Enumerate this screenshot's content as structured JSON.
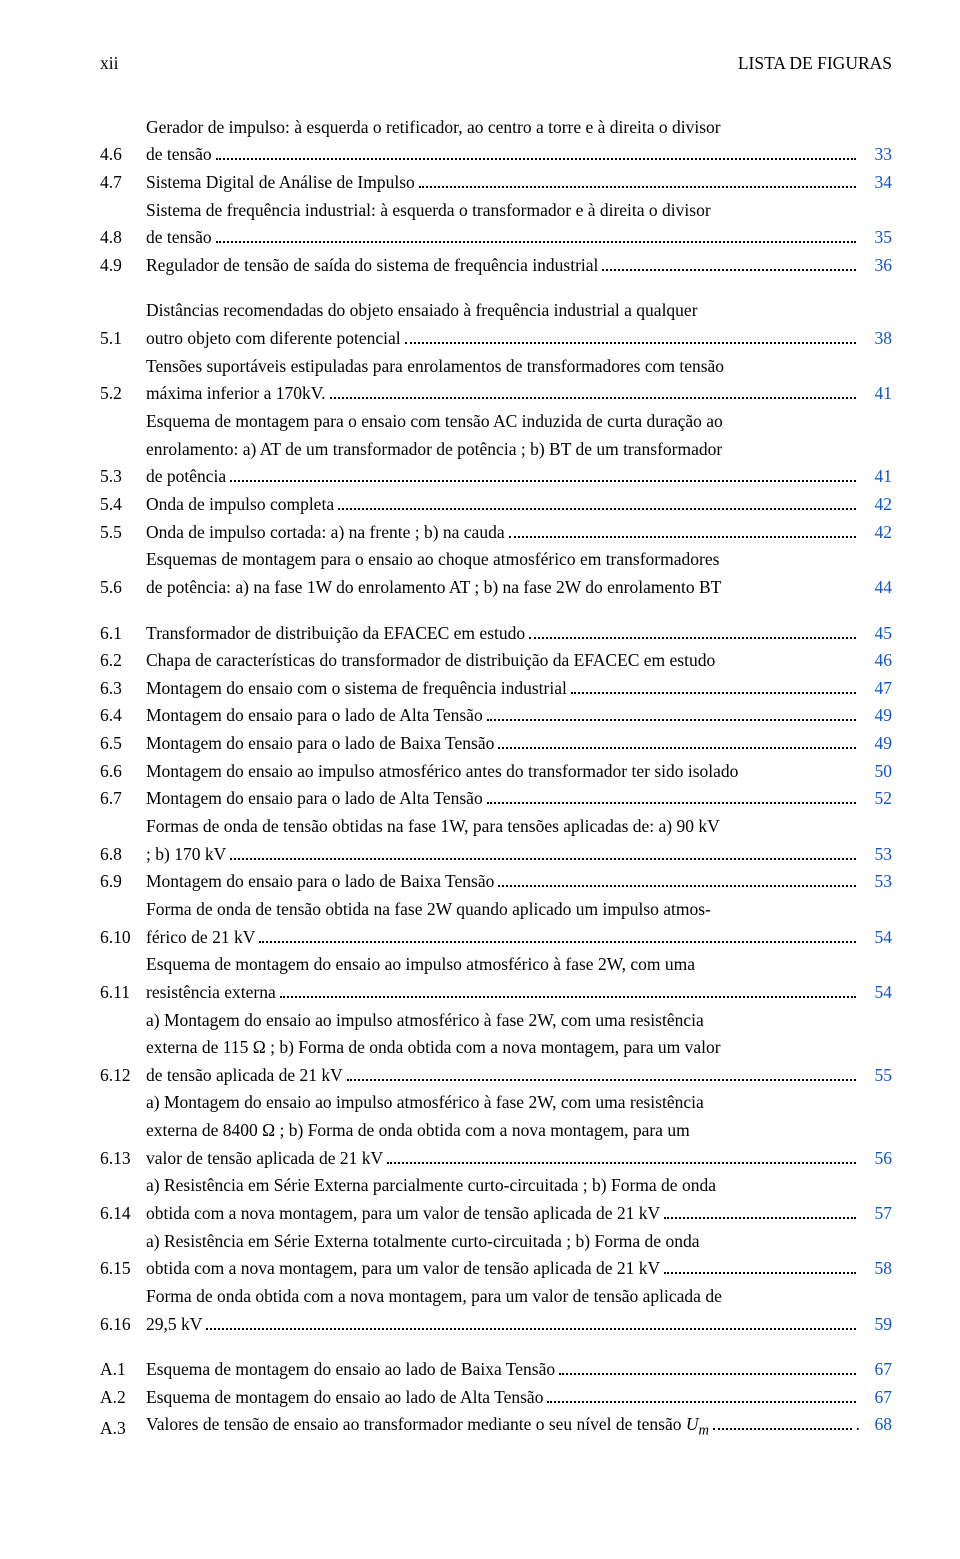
{
  "header": {
    "left": "xii",
    "right": "LISTA DE FIGURAS"
  },
  "accent_color": "#1155cc",
  "groups": [
    {
      "entries": [
        {
          "num": "4.6",
          "lines": [
            "Gerador de impulso: à esquerda o retificador, ao centro a torre e à direita o divisor"
          ],
          "last": "de tensão",
          "page": "33"
        },
        {
          "num": "4.7",
          "last": "Sistema Digital de Análise de Impulso",
          "page": "34"
        },
        {
          "num": "4.8",
          "lines": [
            "Sistema de frequência industrial: à esquerda o transformador e à direita o divisor"
          ],
          "last": "de tensão",
          "page": "35"
        },
        {
          "num": "4.9",
          "last": "Regulador de tensão de saída do sistema de frequência industrial",
          "page": "36"
        }
      ]
    },
    {
      "entries": [
        {
          "num": "5.1",
          "lines": [
            "Distâncias recomendadas do objeto ensaiado à frequência industrial a qualquer"
          ],
          "last": "outro objeto com diferente potencial",
          "page": "38"
        },
        {
          "num": "5.2",
          "lines": [
            "Tensões suportáveis estipuladas para enrolamentos de transformadores com tensão"
          ],
          "last": "máxima inferior a 170kV.",
          "page": "41"
        },
        {
          "num": "5.3",
          "lines": [
            "Esquema de montagem para o ensaio com tensão AC induzida de curta duração ao",
            "enrolamento: a) AT de um transformador de potência ; b) BT de um transformador"
          ],
          "last": "de potência",
          "page": "41"
        },
        {
          "num": "5.4",
          "last": "Onda de impulso completa",
          "page": "42"
        },
        {
          "num": "5.5",
          "last": "Onda de impulso cortada: a) na frente ; b) na cauda",
          "page": "42"
        },
        {
          "num": "5.6",
          "lines": [
            "Esquemas de montagem para o ensaio ao choque atmosférico em transformadores"
          ],
          "last": "de potência: a) na fase 1W do enrolamento AT ; b) na fase 2W do enrolamento BT",
          "page": "44",
          "nodots": true
        }
      ]
    },
    {
      "entries": [
        {
          "num": "6.1",
          "last": "Transformador de distribuição da EFACEC em estudo",
          "page": "45"
        },
        {
          "num": "6.2",
          "last": "Chapa de características do transformador de distribuição da EFACEC em estudo",
          "page": "46",
          "nodots": true
        },
        {
          "num": "6.3",
          "last": "Montagem do ensaio com o sistema de frequência industrial",
          "page": "47"
        },
        {
          "num": "6.4",
          "last": "Montagem do ensaio para o lado de Alta Tensão",
          "page": "49"
        },
        {
          "num": "6.5",
          "last": "Montagem do ensaio para o lado de Baixa Tensão",
          "page": "49"
        },
        {
          "num": "6.6",
          "last": "Montagem do ensaio ao impulso atmosférico antes do transformador ter sido isolado",
          "page": "50",
          "nodots": true
        },
        {
          "num": "6.7",
          "last": "Montagem do ensaio para o lado de Alta Tensão",
          "page": "52"
        },
        {
          "num": "6.8",
          "lines": [
            "Formas de onda de tensão obtidas na fase 1W, para tensões aplicadas de: a) 90 kV"
          ],
          "last": "; b) 170 kV",
          "page": "53"
        },
        {
          "num": "6.9",
          "last": "Montagem do ensaio para o lado de Baixa Tensão",
          "page": "53"
        },
        {
          "num": "6.10",
          "lines": [
            "Forma de onda de tensão obtida na fase 2W quando aplicado um impulso atmos-"
          ],
          "last": "férico de 21 kV",
          "page": "54"
        },
        {
          "num": "6.11",
          "lines": [
            "Esquema de montagem do ensaio ao impulso atmosférico à fase 2W, com uma"
          ],
          "last": "resistência externa",
          "page": "54"
        },
        {
          "num": "6.12",
          "lines": [
            "a) Montagem do ensaio ao impulso atmosférico à fase 2W, com uma resistência",
            "externa de 115 Ω ; b) Forma de onda obtida com a nova montagem, para um valor"
          ],
          "last": "de tensão aplicada de 21 kV",
          "page": "55"
        },
        {
          "num": "6.13",
          "lines": [
            "a) Montagem do ensaio ao impulso atmosférico à fase 2W, com uma resistência",
            "externa de 8400 Ω ; b) Forma de onda obtida com a nova montagem, para um"
          ],
          "last": "valor de tensão aplicada de 21 kV",
          "page": "56"
        },
        {
          "num": "6.14",
          "lines": [
            "a) Resistência em Série Externa parcialmente curto-circuitada ; b) Forma de onda"
          ],
          "last": "obtida com a nova montagem, para um valor de tensão aplicada de 21 kV",
          "page": "57"
        },
        {
          "num": "6.15",
          "lines": [
            "a) Resistência em Série Externa totalmente curto-circuitada ; b) Forma de onda"
          ],
          "last": "obtida com a nova montagem, para um valor de tensão aplicada de 21 kV",
          "page": "58"
        },
        {
          "num": "6.16",
          "lines": [
            "Forma de onda obtida com a nova montagem, para um valor de tensão aplicada de"
          ],
          "last": "29,5 kV",
          "page": "59"
        }
      ]
    },
    {
      "entries": [
        {
          "num": "A.1",
          "last": "Esquema de montagem do ensaio ao lado de Baixa Tensão",
          "page": "67"
        },
        {
          "num": "A.2",
          "last": "Esquema de montagem do ensaio ao lado de Alta Tensão",
          "page": "67"
        },
        {
          "num": "A.3",
          "last_html": "Valores de tensão de ensaio ao transformador mediante o seu nível de tensão <i>U<sub>m</sub></i>",
          "page": "68",
          "traildot": true
        }
      ]
    }
  ]
}
